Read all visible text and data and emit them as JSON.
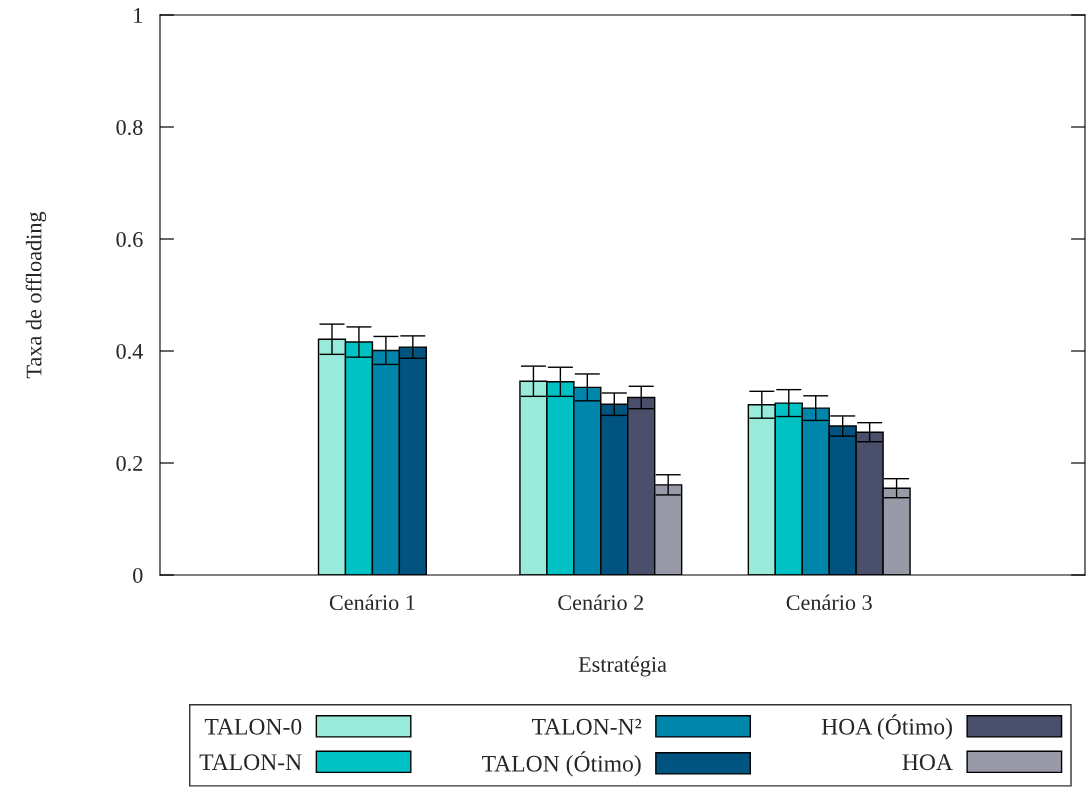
{
  "chart_data": {
    "type": "bar",
    "xlabel": "Estratégia",
    "ylabel": "Taxa de offloading",
    "categories": [
      "Cenário 1",
      "Cenário 2",
      "Cenário 3"
    ],
    "series": [
      {
        "name": "TALON-0",
        "color": "#98ebdb",
        "values": [
          0.421,
          0.346,
          0.304
        ],
        "errors": [
          0.027,
          0.027,
          0.024
        ]
      },
      {
        "name": "TALON-N",
        "color": "#00c1c4",
        "values": [
          0.416,
          0.345,
          0.307
        ],
        "errors": [
          0.027,
          0.026,
          0.024
        ]
      },
      {
        "name": "TALON-N²",
        "color": "#0086ab",
        "values": [
          0.401,
          0.335,
          0.298
        ],
        "errors": [
          0.025,
          0.024,
          0.022
        ]
      },
      {
        "name": "TALON (Ótimo)",
        "color": "#00547f",
        "values": [
          0.407,
          0.305,
          0.266
        ],
        "errors": [
          0.02,
          0.02,
          0.018
        ]
      },
      {
        "name": "HOA (Ótimo)",
        "color": "#4a4f6b",
        "values": [
          null,
          0.317,
          0.255
        ],
        "errors": [
          null,
          0.02,
          0.017
        ]
      },
      {
        "name": "HOA",
        "color": "#989aa8",
        "values": [
          null,
          0.161,
          0.155
        ],
        "errors": [
          null,
          0.018,
          0.017
        ]
      }
    ],
    "ylim": [
      0,
      1
    ],
    "yticks": [
      0,
      0.2,
      0.4,
      0.6,
      0.8,
      1
    ],
    "grid": false,
    "legend": "bottom"
  }
}
